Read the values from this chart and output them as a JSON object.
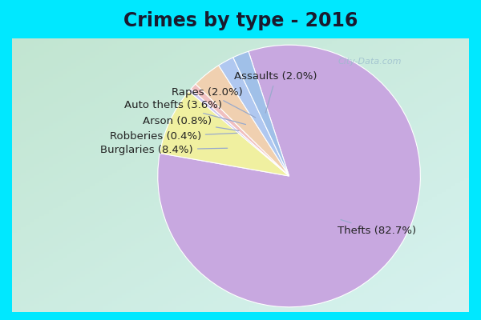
{
  "title": "Crimes by type - 2016",
  "labels": [
    "Thefts",
    "Burglaries",
    "Robberies",
    "Arson",
    "Auto thefts",
    "Rapes",
    "Assaults"
  ],
  "values": [
    82.7,
    8.4,
    0.4,
    0.8,
    3.6,
    2.0,
    2.0
  ],
  "colors": [
    "#c8a8e0",
    "#f0f0a0",
    "#d0c8f0",
    "#f0c0c0",
    "#f0d0b0",
    "#b0c8f0",
    "#a0c0e8"
  ],
  "background_top": "#00e8ff",
  "background_inner": "#c8e8d8",
  "title_fontsize": 17,
  "label_fontsize": 9.5,
  "startangle": 108,
  "label_display": [
    "Thefts (82.7%)",
    "Burglaries (8.4%)",
    "Robberies (0.4%)",
    "Arson (0.8%)",
    "Auto thefts (3.6%)",
    "Rapes (2.0%)",
    "Assaults (2.0%)"
  ],
  "label_positions_x": [
    0.52,
    -0.58,
    -0.52,
    -0.44,
    -0.36,
    -0.2,
    0.05
  ],
  "label_positions_y": [
    -0.42,
    0.2,
    0.3,
    0.42,
    0.54,
    0.64,
    0.76
  ],
  "label_ha": [
    "left",
    "right",
    "right",
    "right",
    "right",
    "right",
    "center"
  ],
  "watermark": "City-Data.com"
}
